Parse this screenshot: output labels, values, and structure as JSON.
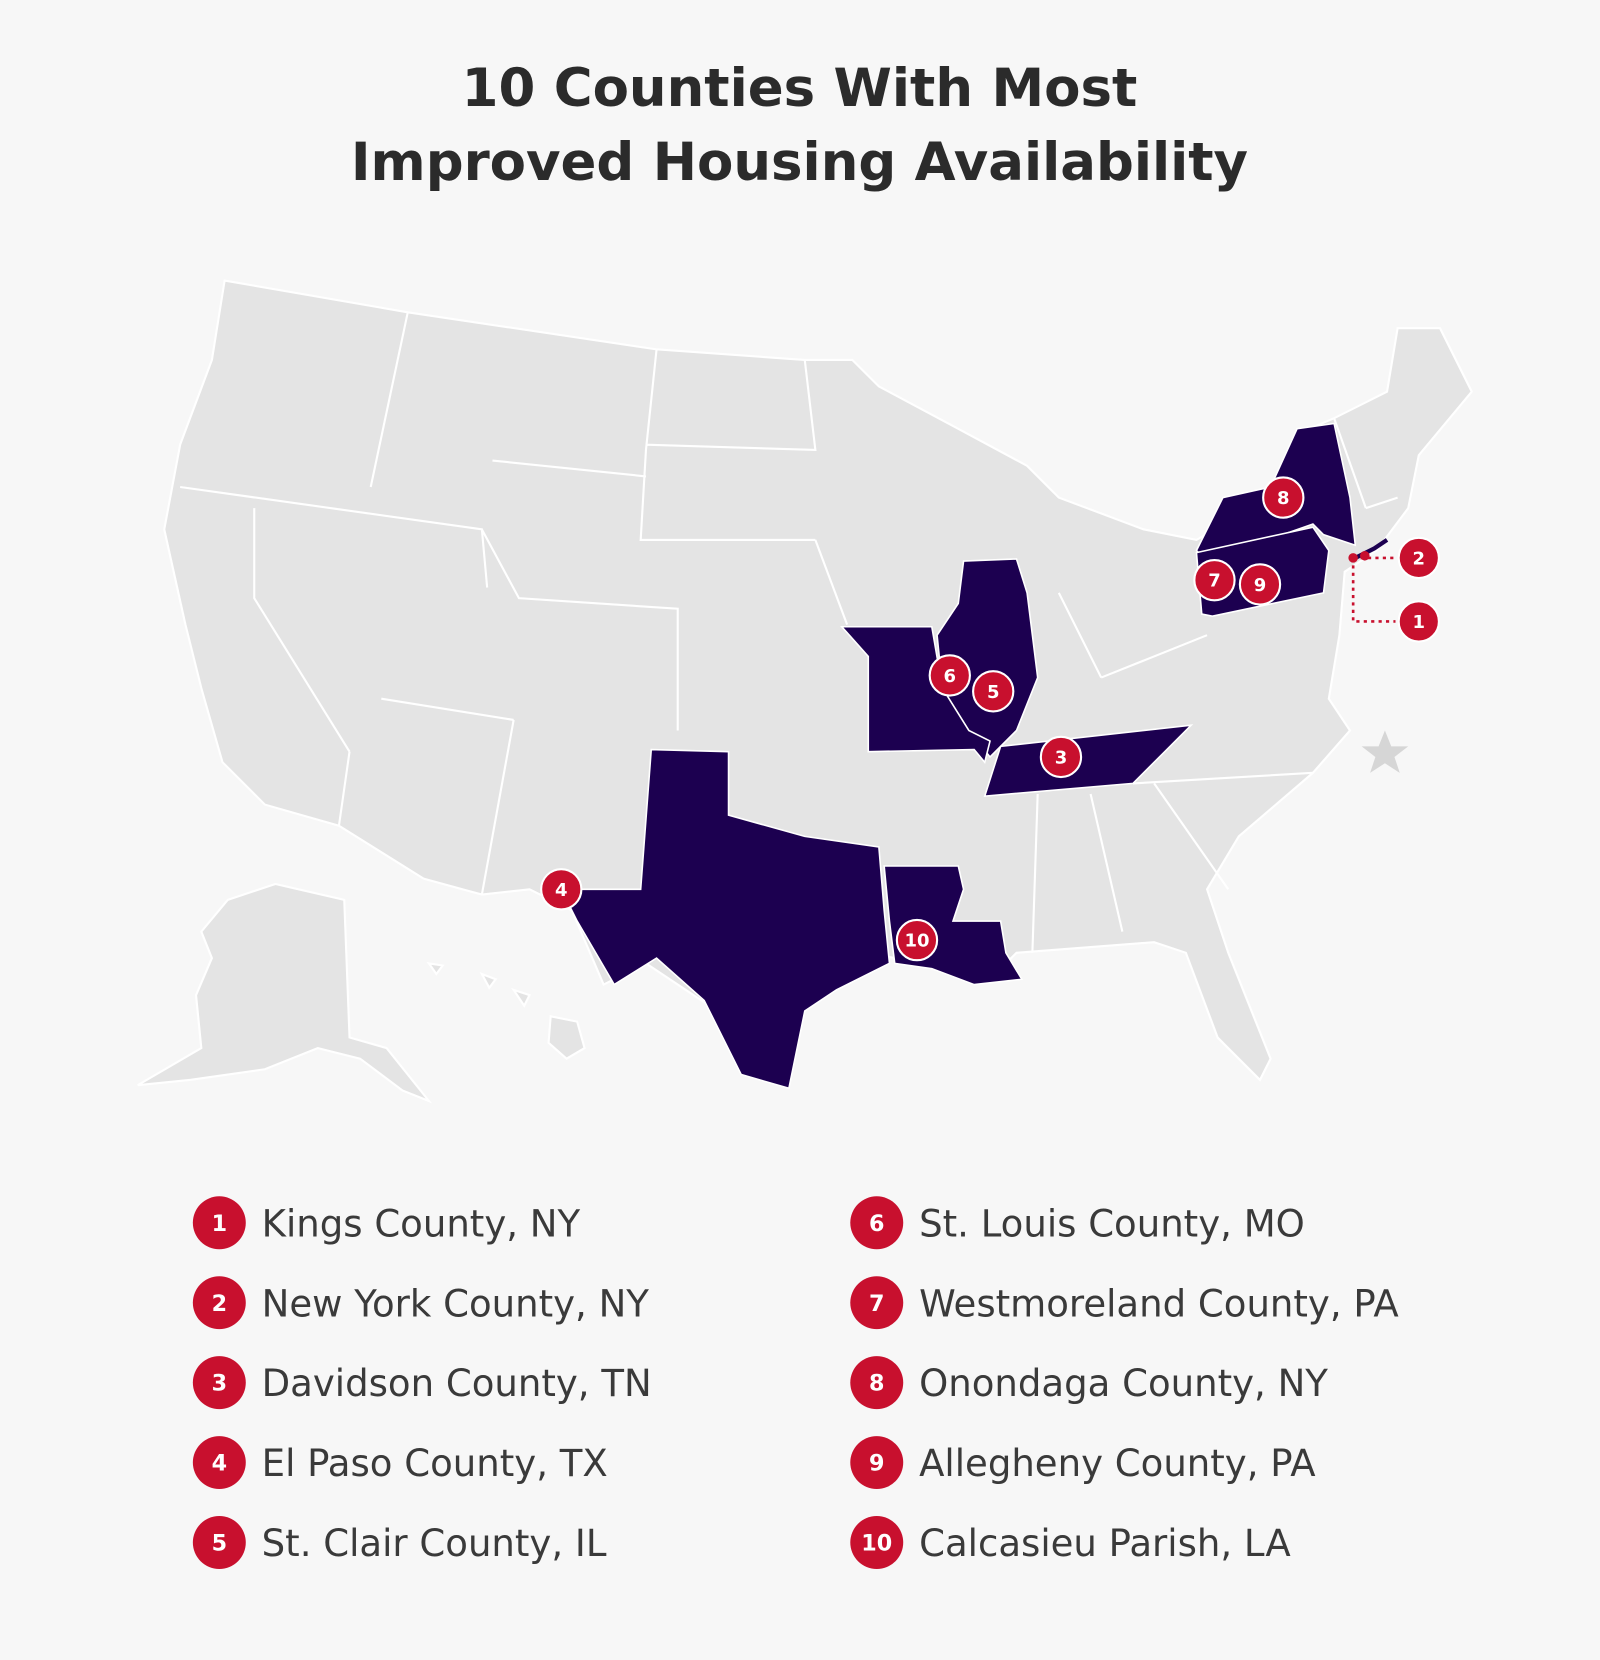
{
  "title_lines": [
    "10 Counties With Most",
    "Improved Housing Availability"
  ],
  "counties": [
    {
      "rank": "1",
      "name": "Kings County, NY"
    },
    {
      "rank": "2",
      "name": "New York County, NY"
    },
    {
      "rank": "3",
      "name": "Davidson County, TN"
    },
    {
      "rank": "4",
      "name": "El Paso County, TX"
    },
    {
      "rank": "5",
      "name": "St. Clair County, IL"
    },
    {
      "rank": "6",
      "name": "St. Louis County, MO"
    },
    {
      "rank": "7",
      "name": "Westmoreland County, PA"
    },
    {
      "rank": "8",
      "name": "Onondaga County, NY"
    },
    {
      "rank": "9",
      "name": "Allegheny County, PA"
    },
    {
      "rank": "10",
      "name": "Calcasieu Parish, LA"
    }
  ]
}
